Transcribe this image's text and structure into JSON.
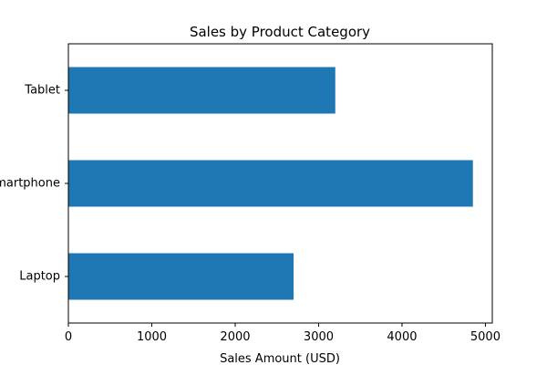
{
  "chart_data": {
    "type": "bar",
    "orientation": "horizontal",
    "title": "Sales by Product Category",
    "xlabel": "Sales Amount (USD)",
    "ylabel": "",
    "categories": [
      "Laptop",
      "Smartphone",
      "Tablet"
    ],
    "category_tick_labels": [
      "Laptop",
      "martphone",
      "Tablet"
    ],
    "values": [
      2700,
      4850,
      3200
    ],
    "xlim": [
      0,
      5082.5
    ],
    "x_ticks": [
      0,
      1000,
      2000,
      3000,
      4000,
      5000
    ],
    "grid": false,
    "legend": "none",
    "bar_color": "#1f77b4"
  }
}
